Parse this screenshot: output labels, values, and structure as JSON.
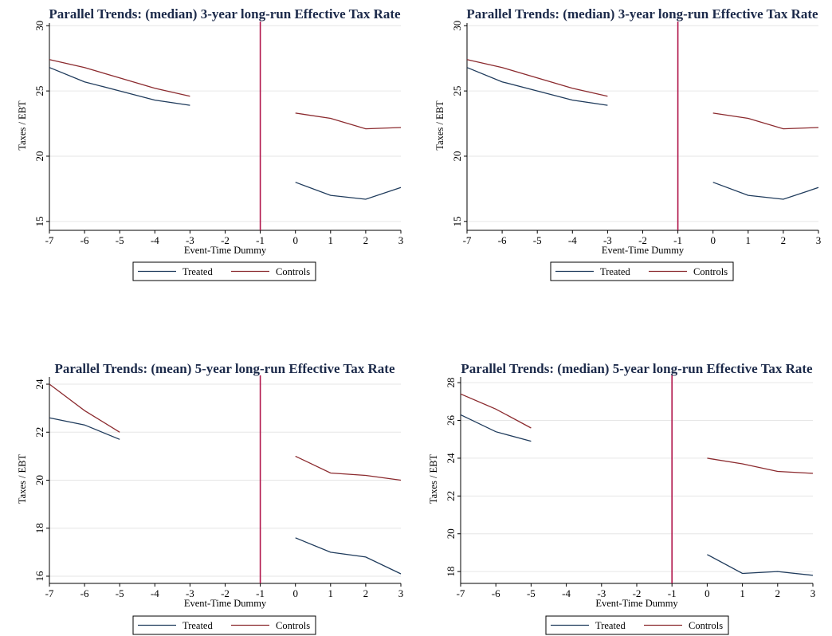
{
  "chart_data": [
    {
      "type": "line",
      "title": "Parallel Trends: (median) 3-year long-run Effective Tax Rate",
      "xlabel": "Event-Time Dummy",
      "ylabel": "Taxes / EBT",
      "x_ticks": [
        -7,
        -6,
        -5,
        -4,
        -3,
        -2,
        -1,
        0,
        1,
        2,
        3
      ],
      "y_ticks": [
        15,
        20,
        25,
        30
      ],
      "xlim": [
        -7,
        3
      ],
      "ylim": [
        14.5,
        30.2
      ],
      "vline_x": -1,
      "grid": true,
      "legend_position": "bottom",
      "series": [
        {
          "name": "Treated",
          "color": "#1f3b5c",
          "segments": [
            {
              "x": [
                -7,
                -6,
                -5,
                -4,
                -3
              ],
              "y": [
                26.8,
                25.7,
                25.0,
                24.3,
                23.9
              ]
            },
            {
              "x": [
                0,
                1,
                2,
                3
              ],
              "y": [
                18.0,
                17.0,
                16.7,
                17.6
              ]
            }
          ]
        },
        {
          "name": "Controls",
          "color": "#8b2a2e",
          "segments": [
            {
              "x": [
                -7,
                -6,
                -5,
                -4,
                -3
              ],
              "y": [
                27.4,
                26.8,
                26.0,
                25.2,
                24.6
              ]
            },
            {
              "x": [
                0,
                1,
                2,
                3
              ],
              "y": [
                23.3,
                22.9,
                22.1,
                22.2
              ]
            }
          ]
        }
      ]
    },
    {
      "type": "line",
      "title": "Parallel Trends: (median) 3-year long-run Effective Tax Rate",
      "xlabel": "Event-Time Dummy",
      "ylabel": "Taxes / EBT",
      "x_ticks": [
        -7,
        -6,
        -5,
        -4,
        -3,
        -2,
        -1,
        0,
        1,
        2,
        3
      ],
      "y_ticks": [
        15,
        20,
        25,
        30
      ],
      "xlim": [
        -7,
        3
      ],
      "ylim": [
        14.5,
        30.2
      ],
      "vline_x": -1,
      "grid": true,
      "legend_position": "bottom",
      "series": [
        {
          "name": "Treated",
          "color": "#1f3b5c",
          "segments": [
            {
              "x": [
                -7,
                -6,
                -5,
                -4,
                -3
              ],
              "y": [
                26.8,
                25.7,
                25.0,
                24.3,
                23.9
              ]
            },
            {
              "x": [
                0,
                1,
                2,
                3
              ],
              "y": [
                18.0,
                17.0,
                16.7,
                17.6
              ]
            }
          ]
        },
        {
          "name": "Controls",
          "color": "#8b2a2e",
          "segments": [
            {
              "x": [
                -7,
                -6,
                -5,
                -4,
                -3
              ],
              "y": [
                27.4,
                26.8,
                26.0,
                25.2,
                24.6
              ]
            },
            {
              "x": [
                0,
                1,
                2,
                3
              ],
              "y": [
                23.3,
                22.9,
                22.1,
                22.2
              ]
            }
          ]
        }
      ]
    },
    {
      "type": "line",
      "title": "Parallel Trends: (mean) 5-year long-run Effective Tax Rate",
      "xlabel": "Event-Time Dummy",
      "ylabel": "Taxes / EBT",
      "x_ticks": [
        -7,
        -6,
        -5,
        -4,
        -3,
        -2,
        -1,
        0,
        1,
        2,
        3
      ],
      "y_ticks": [
        16,
        18,
        20,
        22,
        24
      ],
      "xlim": [
        -7,
        3
      ],
      "ylim": [
        15.8,
        24.3
      ],
      "vline_x": -1,
      "grid": true,
      "legend_position": "bottom",
      "series": [
        {
          "name": "Treated",
          "color": "#1f3b5c",
          "segments": [
            {
              "x": [
                -7,
                -6,
                -5
              ],
              "y": [
                22.6,
                22.3,
                21.7
              ]
            },
            {
              "x": [
                0,
                1,
                2,
                3
              ],
              "y": [
                17.6,
                17.0,
                16.8,
                16.1
              ]
            }
          ]
        },
        {
          "name": "Controls",
          "color": "#8b2a2e",
          "segments": [
            {
              "x": [
                -7,
                -6,
                -5
              ],
              "y": [
                24.0,
                22.9,
                22.0
              ]
            },
            {
              "x": [
                0,
                1,
                2,
                3
              ],
              "y": [
                21.0,
                20.3,
                20.2,
                20.0
              ]
            }
          ]
        }
      ]
    },
    {
      "type": "line",
      "title": "Parallel Trends: (median) 5-year long-run Effective Tax Rate",
      "xlabel": "Event-Time Dummy",
      "ylabel": "Taxes / EBT",
      "x_ticks": [
        -7,
        -6,
        -5,
        -4,
        -3,
        -2,
        -1,
        0,
        1,
        2,
        3
      ],
      "y_ticks": [
        18,
        20,
        22,
        24,
        26,
        28
      ],
      "xlim": [
        -7,
        3
      ],
      "ylim": [
        17.5,
        28.3
      ],
      "vline_x": -1,
      "grid": true,
      "legend_position": "bottom",
      "series": [
        {
          "name": "Treated",
          "color": "#1f3b5c",
          "segments": [
            {
              "x": [
                -7,
                -6,
                -5
              ],
              "y": [
                26.3,
                25.4,
                24.9
              ]
            },
            {
              "x": [
                0,
                1,
                2,
                3
              ],
              "y": [
                18.9,
                17.9,
                18.0,
                17.8
              ]
            }
          ]
        },
        {
          "name": "Controls",
          "color": "#8b2a2e",
          "segments": [
            {
              "x": [
                -7,
                -6,
                -5
              ],
              "y": [
                27.4,
                26.6,
                25.6
              ]
            },
            {
              "x": [
                0,
                1,
                2,
                3
              ],
              "y": [
                24.0,
                23.7,
                23.3,
                23.2
              ]
            }
          ]
        }
      ]
    }
  ]
}
